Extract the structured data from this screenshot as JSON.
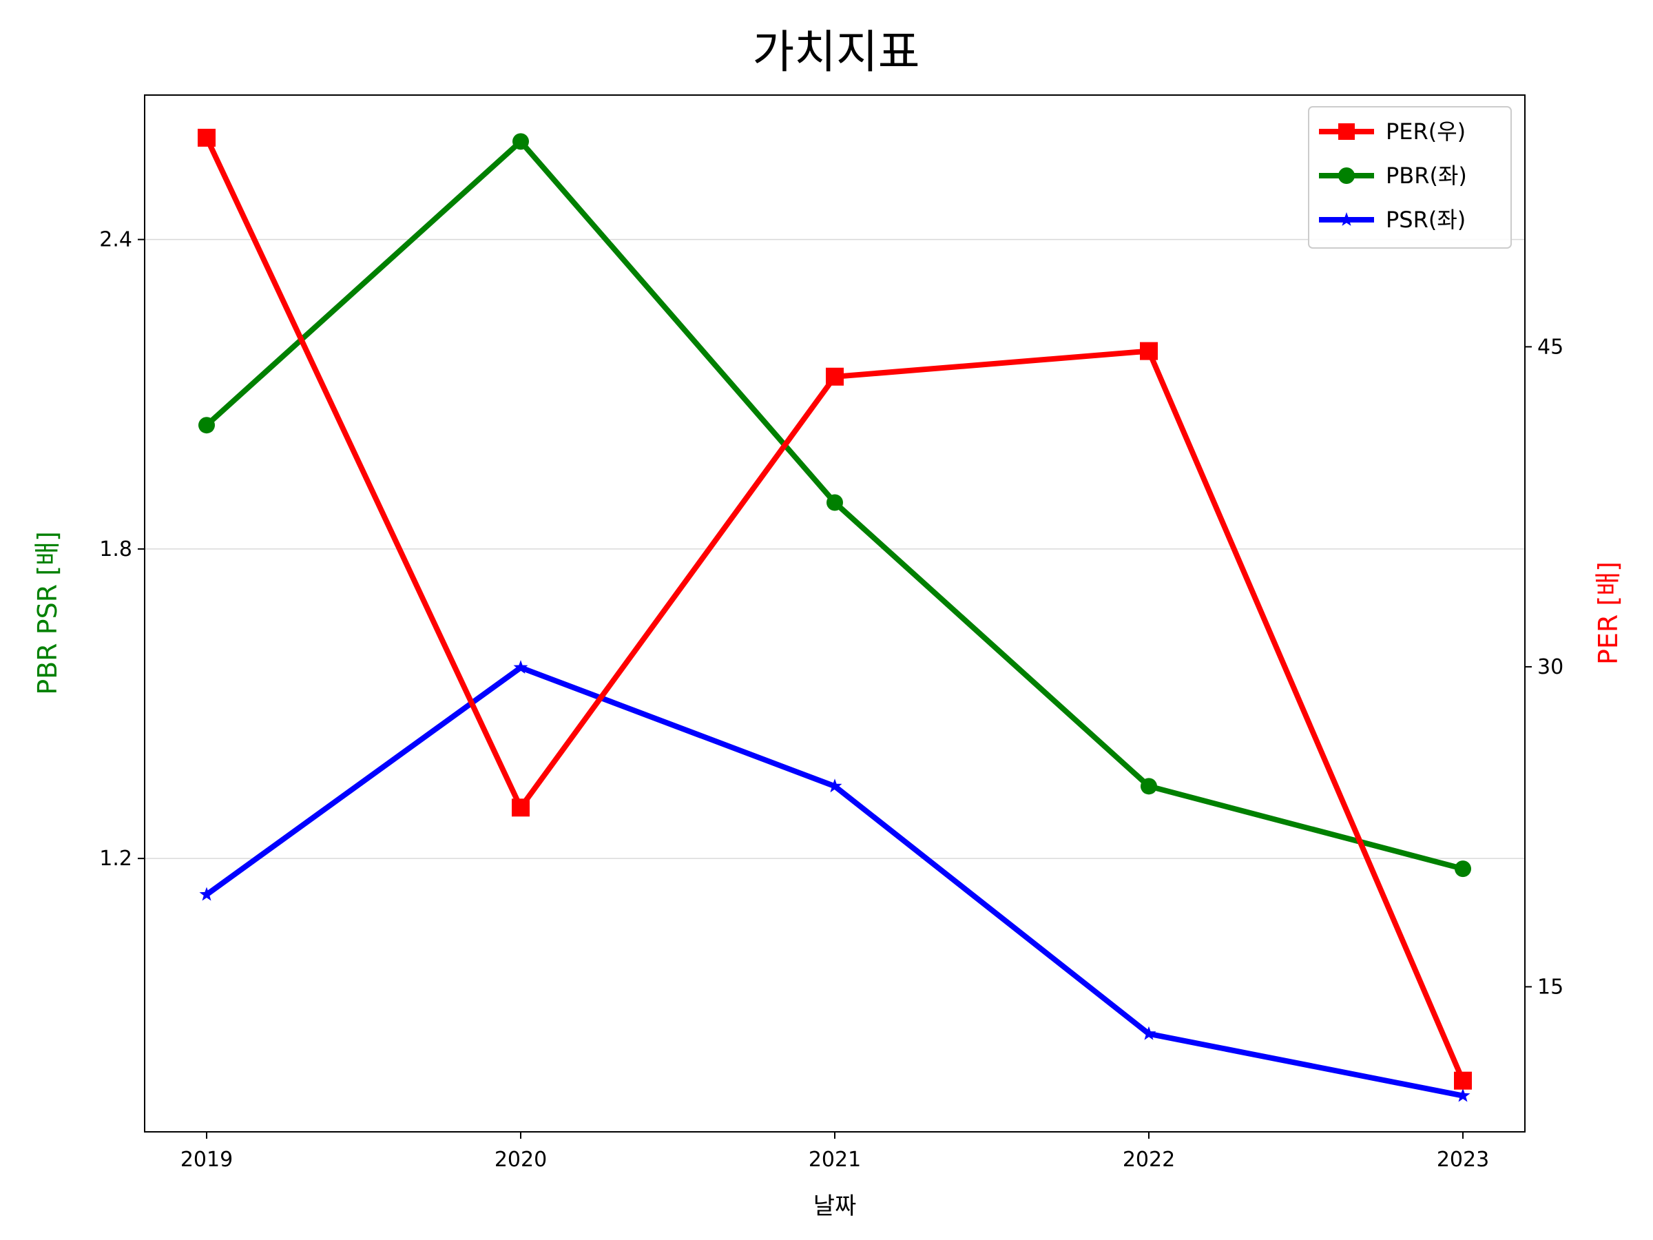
{
  "chart_data": {
    "type": "line",
    "title": "가치지표",
    "xlabel": "날짜",
    "ylabel_left": "PBR PSR [배]",
    "ylabel_right": "PER [배]",
    "categories": [
      "2019",
      "2020",
      "2021",
      "2022",
      "2023"
    ],
    "left_axis": {
      "ylim": [
        0.67,
        2.68
      ],
      "ticks": [
        1.2,
        1.8,
        2.4
      ],
      "tick_labels": [
        "1.2",
        "1.8",
        "2.4"
      ],
      "color": "#008000"
    },
    "right_axis": {
      "ylim": [
        8.2,
        56.8
      ],
      "ticks": [
        15,
        30,
        45
      ],
      "tick_labels": [
        "15",
        "30",
        "45"
      ],
      "color": "#ff0000"
    },
    "series": [
      {
        "name": "PER(우)",
        "axis": "right",
        "color": "#ff0000",
        "marker": "square",
        "values": [
          54.8,
          23.4,
          43.6,
          44.8,
          10.6
        ]
      },
      {
        "name": "PBR(좌)",
        "axis": "left",
        "color": "#008000",
        "marker": "circle",
        "values": [
          2.04,
          2.59,
          1.89,
          1.34,
          1.18
        ]
      },
      {
        "name": "PSR(좌)",
        "axis": "left",
        "color": "#0000ff",
        "marker": "star",
        "values": [
          1.13,
          1.57,
          1.34,
          0.86,
          0.74
        ]
      }
    ],
    "grid": true,
    "legend_position": "top-right"
  }
}
